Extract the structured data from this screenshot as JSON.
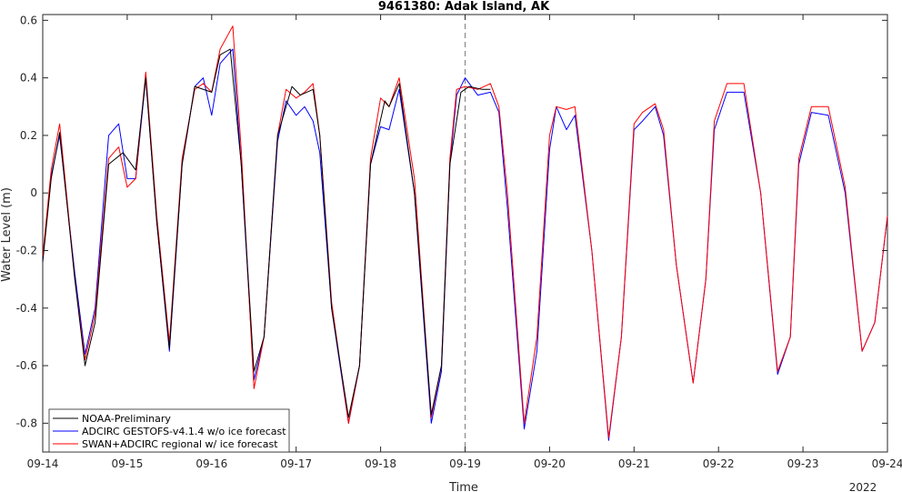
{
  "chart_data": {
    "type": "line",
    "title": "9461380: Adak Island, AK",
    "xlabel": "Time",
    "ylabel": "Water Level (m)",
    "x_ticks": [
      "09-14",
      "09-15",
      "09-16",
      "09-17",
      "09-18",
      "09-19",
      "09-20",
      "09-21",
      "09-22",
      "09-23",
      "09-24"
    ],
    "x_secondary_label": "2022",
    "xlim_days": [
      0,
      10
    ],
    "ylim": [
      -0.9,
      0.62
    ],
    "y_ticks": [
      -0.8,
      -0.6,
      -0.4,
      -0.2,
      0,
      0.2,
      0.4,
      0.6
    ],
    "y_tick_labels": [
      "-0.8",
      "-0.6",
      "-0.4",
      "-0.2",
      "0",
      "0.2",
      "0.4",
      "0.6"
    ],
    "forecast_start_day": 5,
    "grid": false,
    "legend_position": "bottom-left",
    "series": [
      {
        "name": "NOAA-Preliminary",
        "color": "#000000",
        "style": "solid",
        "x": [
          0,
          0.1,
          0.2,
          0.38,
          0.5,
          0.62,
          0.78,
          0.95,
          1.1,
          1.22,
          1.35,
          1.5,
          1.65,
          1.8,
          2.0,
          2.1,
          2.22,
          2.35,
          2.5,
          2.62,
          2.78,
          2.95,
          3.05,
          3.2,
          3.28,
          3.42,
          3.62,
          3.75,
          3.88,
          4.05,
          4.1,
          4.22,
          4.4,
          4.6,
          4.72,
          4.82,
          4.95,
          5.05,
          5.2,
          5.3
        ],
        "y": [
          -0.24,
          0.05,
          0.21,
          -0.3,
          -0.6,
          -0.45,
          0.1,
          0.14,
          0.08,
          0.4,
          -0.1,
          -0.54,
          0.1,
          0.37,
          0.35,
          0.48,
          0.5,
          0.1,
          -0.62,
          -0.5,
          0.2,
          0.37,
          0.34,
          0.36,
          0.2,
          -0.4,
          -0.78,
          -0.6,
          0.1,
          0.32,
          0.3,
          0.38,
          0.0,
          -0.77,
          -0.6,
          0.1,
          0.35,
          0.37,
          0.36,
          0.36
        ]
      },
      {
        "name": "ADCIRC GESTOFS-v4.1.4 w/o ice forecast",
        "color": "#0000ff",
        "style": "solid",
        "x": [
          0,
          0.1,
          0.2,
          0.38,
          0.5,
          0.62,
          0.78,
          0.9,
          1.0,
          1.1,
          1.22,
          1.35,
          1.5,
          1.65,
          1.8,
          1.9,
          2.0,
          2.1,
          2.25,
          2.35,
          2.5,
          2.62,
          2.78,
          2.88,
          3.0,
          3.1,
          3.2,
          3.28,
          3.42,
          3.62,
          3.75,
          3.88,
          4.0,
          4.1,
          4.22,
          4.4,
          4.6,
          4.72,
          4.82,
          4.9,
          5.0,
          5.15,
          5.3,
          5.4,
          5.5,
          5.7,
          5.85,
          6.0,
          6.08,
          6.2,
          6.3,
          6.5,
          6.7,
          6.85,
          7.0,
          7.1,
          7.25,
          7.35,
          7.5,
          7.7,
          7.85,
          7.95,
          8.1,
          8.3,
          8.5,
          8.7,
          8.85,
          8.95,
          9.1,
          9.3,
          9.5,
          9.7,
          9.85,
          10.0
        ],
        "y": [
          -0.23,
          0.06,
          0.2,
          -0.28,
          -0.56,
          -0.4,
          0.2,
          0.24,
          0.05,
          0.05,
          0.4,
          -0.1,
          -0.55,
          0.1,
          0.37,
          0.4,
          0.27,
          0.45,
          0.5,
          0.1,
          -0.65,
          -0.5,
          0.18,
          0.32,
          0.27,
          0.3,
          0.25,
          0.14,
          -0.4,
          -0.8,
          -0.6,
          0.1,
          0.23,
          0.22,
          0.36,
          0.0,
          -0.8,
          -0.62,
          0.1,
          0.34,
          0.4,
          0.34,
          0.35,
          0.28,
          -0.05,
          -0.82,
          -0.55,
          0.15,
          0.3,
          0.22,
          0.27,
          -0.2,
          -0.86,
          -0.5,
          0.22,
          0.25,
          0.3,
          0.2,
          -0.25,
          -0.66,
          -0.3,
          0.22,
          0.35,
          0.35,
          0.0,
          -0.63,
          -0.5,
          0.1,
          0.28,
          0.27,
          0.0,
          -0.55,
          -0.45,
          -0.08
        ]
      },
      {
        "name": "SWAN+ADCIRC regional w/ ice forecast",
        "color": "#ff0000",
        "style": "solid",
        "x": [
          0,
          0.1,
          0.2,
          0.38,
          0.5,
          0.62,
          0.78,
          0.9,
          1.0,
          1.1,
          1.22,
          1.35,
          1.5,
          1.65,
          1.8,
          1.9,
          2.0,
          2.1,
          2.25,
          2.35,
          2.5,
          2.62,
          2.78,
          2.88,
          3.0,
          3.1,
          3.2,
          3.28,
          3.42,
          3.62,
          3.75,
          3.88,
          4.0,
          4.1,
          4.22,
          4.4,
          4.6,
          4.72,
          4.82,
          4.9,
          5.0,
          5.15,
          5.3,
          5.4,
          5.5,
          5.7,
          5.85,
          6.0,
          6.08,
          6.2,
          6.3,
          6.5,
          6.7,
          6.85,
          7.0,
          7.1,
          7.25,
          7.35,
          7.5,
          7.7,
          7.85,
          7.95,
          8.1,
          8.3,
          8.5,
          8.7,
          8.85,
          8.95,
          9.1,
          9.3,
          9.5,
          9.7,
          9.85,
          10.0
        ],
        "y": [
          -0.22,
          0.08,
          0.24,
          -0.3,
          -0.58,
          -0.42,
          0.12,
          0.16,
          0.02,
          0.05,
          0.42,
          -0.08,
          -0.52,
          0.12,
          0.36,
          0.38,
          0.35,
          0.5,
          0.58,
          0.15,
          -0.68,
          -0.5,
          0.2,
          0.36,
          0.33,
          0.35,
          0.38,
          0.2,
          -0.38,
          -0.8,
          -0.6,
          0.12,
          0.33,
          0.3,
          0.4,
          0.05,
          -0.78,
          -0.6,
          0.12,
          0.36,
          0.37,
          0.36,
          0.38,
          0.3,
          0.0,
          -0.8,
          -0.5,
          0.2,
          0.3,
          0.29,
          0.3,
          -0.2,
          -0.85,
          -0.5,
          0.24,
          0.28,
          0.31,
          0.22,
          -0.25,
          -0.66,
          -0.3,
          0.25,
          0.38,
          0.38,
          0.0,
          -0.62,
          -0.5,
          0.12,
          0.3,
          0.3,
          0.02,
          -0.55,
          -0.45,
          -0.08
        ]
      }
    ]
  }
}
